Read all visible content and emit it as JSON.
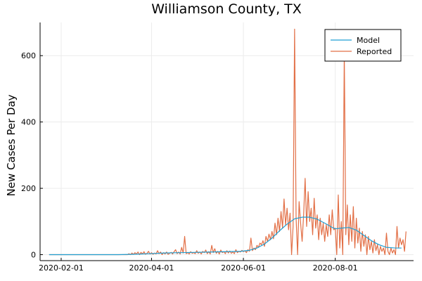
{
  "chart_data": {
    "type": "line",
    "title": "Williamson County, TX",
    "xlabel": "",
    "ylabel": "New Cases Per Day",
    "x_axis_type": "date",
    "xlim": [
      "2020-01-18",
      "2020-09-22"
    ],
    "ylim": [
      -18,
      700
    ],
    "x_ticks": [
      "2020-02-01",
      "2020-04-01",
      "2020-06-01",
      "2020-08-01"
    ],
    "y_ticks": [
      0,
      200,
      400,
      600
    ],
    "grid": true,
    "legend_position": "top-right",
    "series": [
      {
        "name": "Model",
        "color": "#1f9fd3",
        "points": [
          [
            "2020-01-24",
            0
          ],
          [
            "2020-02-15",
            0
          ],
          [
            "2020-03-10",
            0
          ],
          [
            "2020-03-20",
            1
          ],
          [
            "2020-03-31",
            3
          ],
          [
            "2020-04-10",
            5
          ],
          [
            "2020-04-20",
            6
          ],
          [
            "2020-05-01",
            7
          ],
          [
            "2020-05-10",
            8
          ],
          [
            "2020-05-20",
            9
          ],
          [
            "2020-05-30",
            10
          ],
          [
            "2020-06-05",
            13
          ],
          [
            "2020-06-10",
            20
          ],
          [
            "2020-06-15",
            32
          ],
          [
            "2020-06-20",
            50
          ],
          [
            "2020-06-25",
            72
          ],
          [
            "2020-06-30",
            92
          ],
          [
            "2020-07-05",
            108
          ],
          [
            "2020-07-10",
            113
          ],
          [
            "2020-07-15",
            113
          ],
          [
            "2020-07-20",
            107
          ],
          [
            "2020-07-25",
            95
          ],
          [
            "2020-07-30",
            82
          ],
          [
            "2020-08-01",
            78
          ],
          [
            "2020-08-05",
            80
          ],
          [
            "2020-08-10",
            82
          ],
          [
            "2020-08-15",
            74
          ],
          [
            "2020-08-20",
            58
          ],
          [
            "2020-08-25",
            42
          ],
          [
            "2020-08-30",
            30
          ],
          [
            "2020-09-04",
            22
          ],
          [
            "2020-09-10",
            20
          ],
          [
            "2020-09-14",
            20
          ]
        ]
      },
      {
        "name": "Reported",
        "color": "#e26f46",
        "points": [
          [
            "2020-01-24",
            0
          ],
          [
            "2020-03-16",
            0
          ],
          [
            "2020-03-17",
            3
          ],
          [
            "2020-03-18",
            0
          ],
          [
            "2020-03-19",
            5
          ],
          [
            "2020-03-20",
            1
          ],
          [
            "2020-03-21",
            6
          ],
          [
            "2020-03-22",
            2
          ],
          [
            "2020-03-23",
            8
          ],
          [
            "2020-03-24",
            0
          ],
          [
            "2020-03-25",
            7
          ],
          [
            "2020-03-26",
            2
          ],
          [
            "2020-03-27",
            9
          ],
          [
            "2020-03-28",
            1
          ],
          [
            "2020-03-29",
            4
          ],
          [
            "2020-03-30",
            10
          ],
          [
            "2020-03-31",
            2
          ],
          [
            "2020-04-01",
            6
          ],
          [
            "2020-04-02",
            1
          ],
          [
            "2020-04-03",
            5
          ],
          [
            "2020-04-04",
            2
          ],
          [
            "2020-04-05",
            12
          ],
          [
            "2020-04-06",
            3
          ],
          [
            "2020-04-07",
            8
          ],
          [
            "2020-04-08",
            0
          ],
          [
            "2020-04-09",
            6
          ],
          [
            "2020-04-10",
            2
          ],
          [
            "2020-04-11",
            8
          ],
          [
            "2020-04-12",
            1
          ],
          [
            "2020-04-13",
            4
          ],
          [
            "2020-04-14",
            7
          ],
          [
            "2020-04-15",
            2
          ],
          [
            "2020-04-16",
            9
          ],
          [
            "2020-04-17",
            15
          ],
          [
            "2020-04-18",
            3
          ],
          [
            "2020-04-19",
            8
          ],
          [
            "2020-04-20",
            2
          ],
          [
            "2020-04-21",
            22
          ],
          [
            "2020-04-22",
            5
          ],
          [
            "2020-04-23",
            55
          ],
          [
            "2020-04-24",
            3
          ],
          [
            "2020-04-25",
            6
          ],
          [
            "2020-04-26",
            2
          ],
          [
            "2020-04-27",
            9
          ],
          [
            "2020-04-28",
            4
          ],
          [
            "2020-04-29",
            6
          ],
          [
            "2020-04-30",
            3
          ],
          [
            "2020-05-01",
            12
          ],
          [
            "2020-05-02",
            4
          ],
          [
            "2020-05-03",
            8
          ],
          [
            "2020-05-04",
            2
          ],
          [
            "2020-05-05",
            10
          ],
          [
            "2020-05-06",
            6
          ],
          [
            "2020-05-07",
            14
          ],
          [
            "2020-05-08",
            3
          ],
          [
            "2020-05-09",
            9
          ],
          [
            "2020-05-10",
            2
          ],
          [
            "2020-05-11",
            28
          ],
          [
            "2020-05-12",
            6
          ],
          [
            "2020-05-13",
            18
          ],
          [
            "2020-05-14",
            4
          ],
          [
            "2020-05-15",
            10
          ],
          [
            "2020-05-16",
            2
          ],
          [
            "2020-05-17",
            14
          ],
          [
            "2020-05-18",
            6
          ],
          [
            "2020-05-19",
            9
          ],
          [
            "2020-05-20",
            3
          ],
          [
            "2020-05-21",
            12
          ],
          [
            "2020-05-22",
            5
          ],
          [
            "2020-05-23",
            11
          ],
          [
            "2020-05-24",
            4
          ],
          [
            "2020-05-25",
            8
          ],
          [
            "2020-05-26",
            3
          ],
          [
            "2020-05-27",
            15
          ],
          [
            "2020-05-28",
            6
          ],
          [
            "2020-05-29",
            10
          ],
          [
            "2020-05-30",
            8
          ],
          [
            "2020-05-31",
            13
          ],
          [
            "2020-06-01",
            9
          ],
          [
            "2020-06-02",
            12
          ],
          [
            "2020-06-03",
            6
          ],
          [
            "2020-06-04",
            15
          ],
          [
            "2020-06-05",
            10
          ],
          [
            "2020-06-06",
            50
          ],
          [
            "2020-06-07",
            12
          ],
          [
            "2020-06-08",
            20
          ],
          [
            "2020-06-09",
            15
          ],
          [
            "2020-06-10",
            28
          ],
          [
            "2020-06-11",
            22
          ],
          [
            "2020-06-12",
            35
          ],
          [
            "2020-06-13",
            30
          ],
          [
            "2020-06-14",
            42
          ],
          [
            "2020-06-15",
            25
          ],
          [
            "2020-06-16",
            55
          ],
          [
            "2020-06-17",
            40
          ],
          [
            "2020-06-18",
            62
          ],
          [
            "2020-06-19",
            45
          ],
          [
            "2020-06-20",
            70
          ],
          [
            "2020-06-21",
            48
          ],
          [
            "2020-06-22",
            95
          ],
          [
            "2020-06-23",
            60
          ],
          [
            "2020-06-24",
            110
          ],
          [
            "2020-06-25",
            70
          ],
          [
            "2020-06-26",
            130
          ],
          [
            "2020-06-27",
            80
          ],
          [
            "2020-06-28",
            168
          ],
          [
            "2020-06-29",
            90
          ],
          [
            "2020-06-30",
            140
          ],
          [
            "2020-07-01",
            75
          ],
          [
            "2020-07-02",
            125
          ],
          [
            "2020-07-03",
            0
          ],
          [
            "2020-07-04",
            85
          ],
          [
            "2020-07-05",
            680
          ],
          [
            "2020-07-06",
            110
          ],
          [
            "2020-07-07",
            0
          ],
          [
            "2020-07-08",
            160
          ],
          [
            "2020-07-09",
            95
          ],
          [
            "2020-07-10",
            40
          ],
          [
            "2020-07-11",
            120
          ],
          [
            "2020-07-12",
            230
          ],
          [
            "2020-07-13",
            85
          ],
          [
            "2020-07-14",
            190
          ],
          [
            "2020-07-15",
            100
          ],
          [
            "2020-07-16",
            140
          ],
          [
            "2020-07-17",
            60
          ],
          [
            "2020-07-18",
            170
          ],
          [
            "2020-07-19",
            80
          ],
          [
            "2020-07-20",
            120
          ],
          [
            "2020-07-21",
            45
          ],
          [
            "2020-07-22",
            110
          ],
          [
            "2020-07-23",
            60
          ],
          [
            "2020-07-24",
            95
          ],
          [
            "2020-07-25",
            40
          ],
          [
            "2020-07-26",
            90
          ],
          [
            "2020-07-27",
            55
          ],
          [
            "2020-07-28",
            120
          ],
          [
            "2020-07-29",
            60
          ],
          [
            "2020-07-30",
            135
          ],
          [
            "2020-07-31",
            75
          ],
          [
            "2020-08-01",
            80
          ],
          [
            "2020-08-02",
            0
          ],
          [
            "2020-08-03",
            180
          ],
          [
            "2020-08-04",
            20
          ],
          [
            "2020-08-05",
            100
          ],
          [
            "2020-08-06",
            0
          ],
          [
            "2020-08-07",
            610
          ],
          [
            "2020-08-08",
            60
          ],
          [
            "2020-08-09",
            150
          ],
          [
            "2020-08-10",
            30
          ],
          [
            "2020-08-11",
            120
          ],
          [
            "2020-08-12",
            40
          ],
          [
            "2020-08-13",
            145
          ],
          [
            "2020-08-14",
            20
          ],
          [
            "2020-08-15",
            110
          ],
          [
            "2020-08-16",
            35
          ],
          [
            "2020-08-17",
            80
          ],
          [
            "2020-08-18",
            10
          ],
          [
            "2020-08-19",
            70
          ],
          [
            "2020-08-20",
            25
          ],
          [
            "2020-08-21",
            60
          ],
          [
            "2020-08-22",
            0
          ],
          [
            "2020-08-23",
            55
          ],
          [
            "2020-08-24",
            15
          ],
          [
            "2020-08-25",
            40
          ],
          [
            "2020-08-26",
            5
          ],
          [
            "2020-08-27",
            45
          ],
          [
            "2020-08-28",
            12
          ],
          [
            "2020-08-29",
            30
          ],
          [
            "2020-08-30",
            0
          ],
          [
            "2020-08-31",
            25
          ],
          [
            "2020-09-01",
            10
          ],
          [
            "2020-09-02",
            20
          ],
          [
            "2020-09-03",
            0
          ],
          [
            "2020-09-04",
            65
          ],
          [
            "2020-09-05",
            10
          ],
          [
            "2020-09-06",
            0
          ],
          [
            "2020-09-07",
            20
          ],
          [
            "2020-09-08",
            5
          ],
          [
            "2020-09-09",
            15
          ],
          [
            "2020-09-10",
            0
          ],
          [
            "2020-09-11",
            85
          ],
          [
            "2020-09-12",
            20
          ],
          [
            "2020-09-13",
            50
          ],
          [
            "2020-09-14",
            30
          ],
          [
            "2020-09-15",
            45
          ],
          [
            "2020-09-16",
            10
          ],
          [
            "2020-09-17",
            70
          ]
        ]
      }
    ]
  }
}
